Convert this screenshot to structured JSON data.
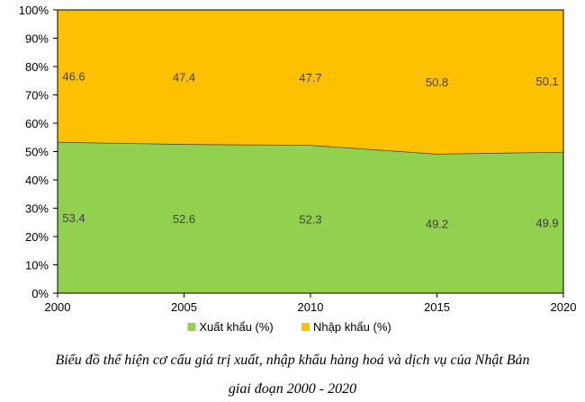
{
  "chart_data": {
    "type": "area",
    "stacked": true,
    "percent": true,
    "x": [
      "2000",
      "2005",
      "2010",
      "2015",
      "2020"
    ],
    "series": [
      {
        "name": "Xuất khẩu (%)",
        "color": "#92d050",
        "values": [
          53.4,
          52.6,
          52.3,
          49.2,
          49.9
        ]
      },
      {
        "name": "Nhập khẩu (%)",
        "color": "#ffc000",
        "values": [
          46.6,
          47.4,
          47.7,
          50.8,
          50.1
        ]
      }
    ],
    "y_ticks": [
      "0%",
      "10%",
      "20%",
      "30%",
      "40%",
      "50%",
      "60%",
      "70%",
      "80%",
      "90%",
      "100%"
    ],
    "ylim": [
      0,
      100
    ],
    "legend": "bottom",
    "grid": false
  },
  "caption": {
    "line1": "Biểu đồ thể hiện cơ cấu giá trị xuất, nhập khẩu hàng hoá và dịch vụ của Nhật Bản",
    "line2": "giai đoạn 2000 - 2020"
  }
}
